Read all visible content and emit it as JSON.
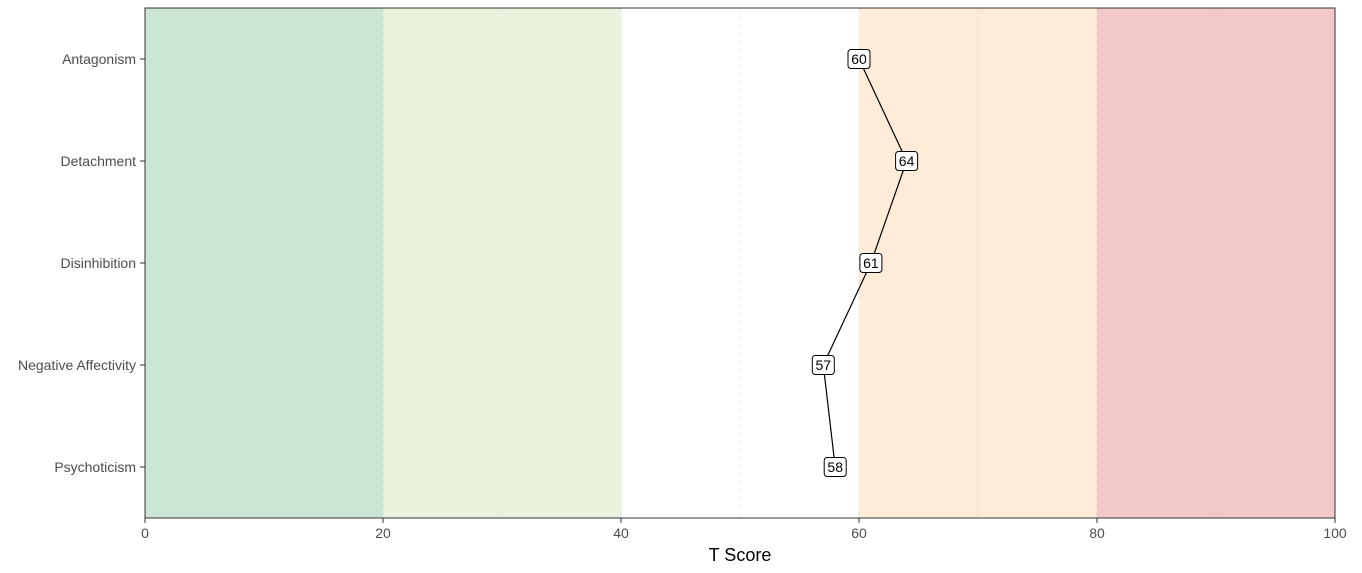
{
  "chart_data": {
    "type": "line",
    "orientation": "horizontal",
    "xlabel": "T Score",
    "ylabel": "",
    "xlim": [
      0,
      100
    ],
    "x_ticks": [
      0,
      20,
      40,
      60,
      80,
      100
    ],
    "x_tick_labels": [
      "0",
      "20",
      "40",
      "60",
      "80",
      "100"
    ],
    "minor_gridlines_x": [
      10,
      30,
      50,
      70,
      90
    ],
    "grid": true,
    "legend": "none",
    "categories": [
      "Antagonism",
      "Detachment",
      "Disinhibition",
      "Negative Affectivity",
      "Psychoticism"
    ],
    "values": [
      60,
      64,
      61,
      57,
      58
    ],
    "value_labels": [
      "60",
      "64",
      "61",
      "57",
      "58"
    ],
    "bands": [
      {
        "from": 0,
        "to": 20,
        "color": "#cbe6d5"
      },
      {
        "from": 20,
        "to": 40,
        "color": "#e9f3dd"
      },
      {
        "from": 40,
        "to": 60,
        "color": "#ffffff"
      },
      {
        "from": 60,
        "to": 80,
        "color": "#feebd8"
      },
      {
        "from": 80,
        "to": 100,
        "color": "#f2c8c8"
      }
    ],
    "line_color": "#000000"
  }
}
